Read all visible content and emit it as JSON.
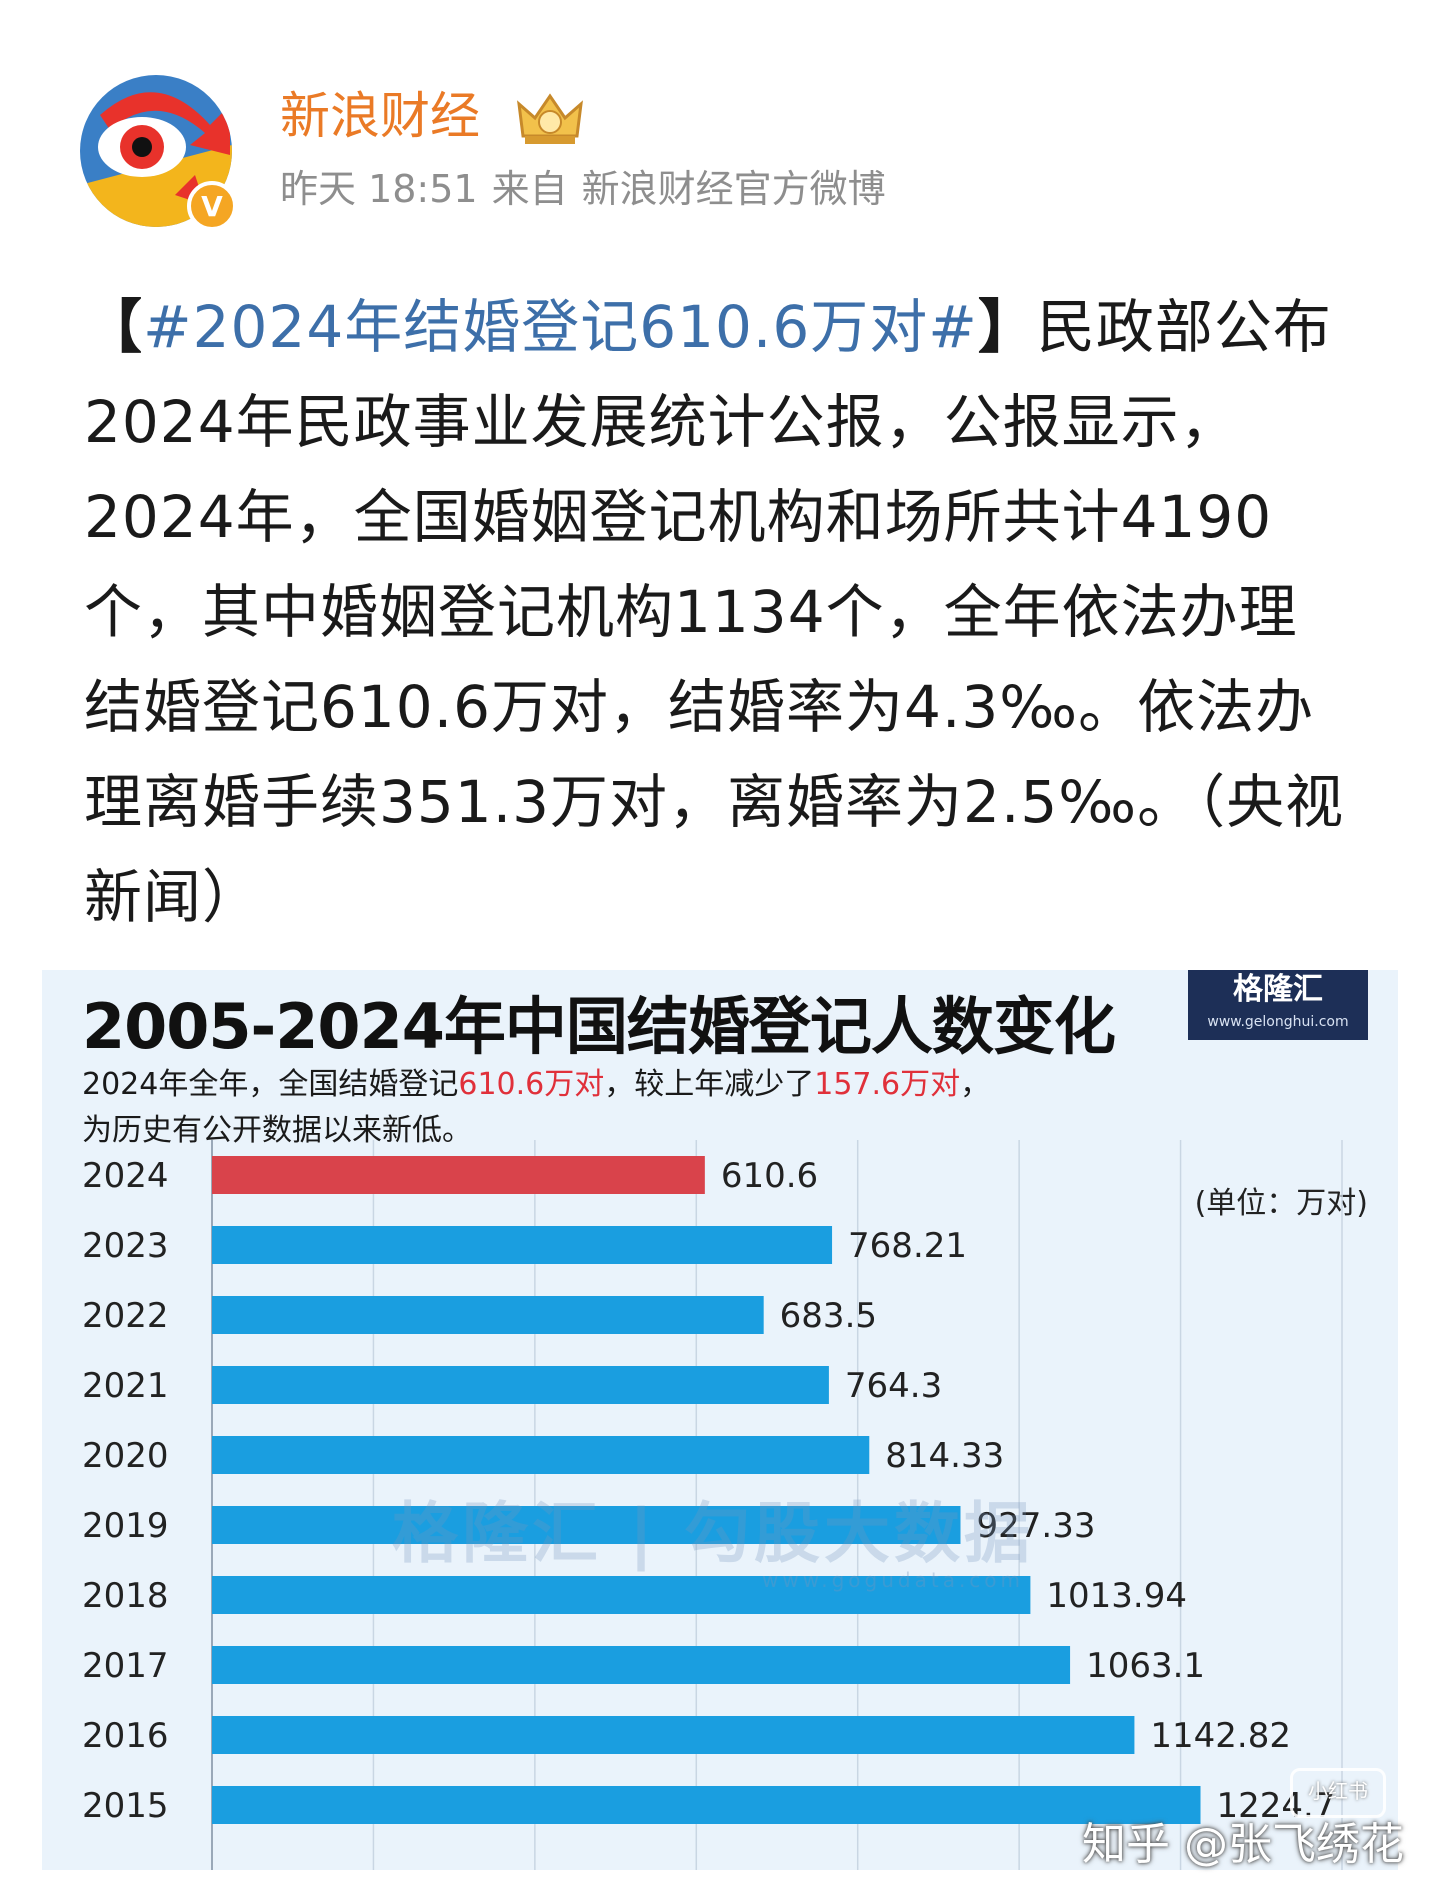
{
  "header": {
    "account_name": "新浪财经",
    "time": "昨天 18:51",
    "source_prefix": "来自",
    "source": "新浪财经官方微博",
    "verified_badge": "V",
    "avatar_icon": "sina-eye-avatar-icon",
    "crown_icon": "crown-badge-icon"
  },
  "post": {
    "bracket_left": "【",
    "hashtag": "#2024年结婚登记610.6万对#",
    "bracket_right": "】",
    "body": "民政部公布2024年民政事业发展统计公报，公报显示，2024年，全国婚姻登记机构和场所共计4190个，其中婚姻登记机构1134个，全年依法办理结婚登记610.6万对，结婚率为4.3‰。依法办理离婚手续351.3万对，离婚率为2.5‰。（央视新闻）"
  },
  "chart_card": {
    "title": "2005-2024年中国结婚登记人数变化",
    "brand_logo": "格隆汇",
    "brand_url": "www.gelonghui.com",
    "subtitle_1": "2024年全年，全国结婚登记",
    "subtitle_hl1": "610.6万对",
    "subtitle_2": "，较上年减少了",
    "subtitle_hl2": "157.6万对",
    "subtitle_3": "，",
    "subtitle_4": "为历史有公开数据以来新低。",
    "unit": "(单位：万对)",
    "watermark": "格隆汇 | 勾股大数据",
    "watermark_url": "www.gogudata.com",
    "colors": {
      "highlight_bar": "#d9434b",
      "bar": "#1a9ee0",
      "highlight_text": "#e0303a"
    }
  },
  "chart_data": {
    "type": "bar",
    "orientation": "horizontal",
    "categories": [
      "2024",
      "2023",
      "2022",
      "2021",
      "2020",
      "2019",
      "2018",
      "2017",
      "2016",
      "2015"
    ],
    "values": [
      610.6,
      768.21,
      683.5,
      764.3,
      814.33,
      927.33,
      1013.94,
      1063.1,
      1142.82,
      1224.7
    ],
    "data_labels": [
      "610.6",
      "768.21",
      "683.5",
      "764.3",
      "814.33",
      "927.33",
      "1013.94",
      "1063.1",
      "1142.82",
      "1224.7"
    ],
    "highlight_index": 0,
    "xlim": [
      0,
      1400
    ],
    "grid": true
  },
  "footer": {
    "zhihu_watermark": "知乎 @张飞绣花",
    "xhs_watermark": "小红书"
  }
}
